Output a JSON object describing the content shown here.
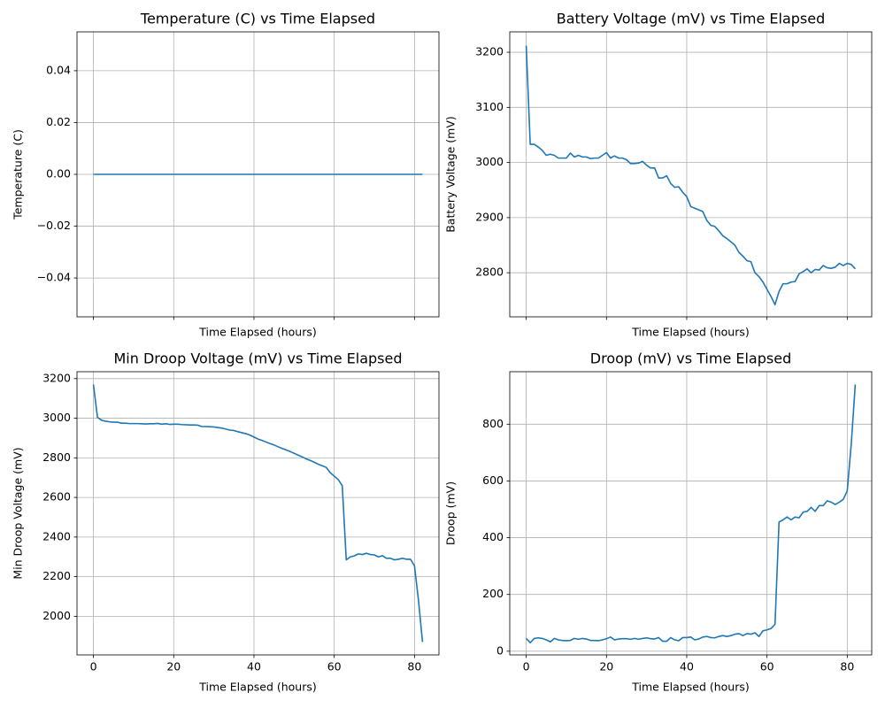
{
  "chart_data": [
    {
      "type": "line",
      "title": "Temperature (C) vs Time Elapsed",
      "xlabel": "Time Elapsed (hours)",
      "ylabel": "Temperature (C)",
      "color": "#1f77b4",
      "grid": true,
      "xtick_labels": false,
      "x": [
        0,
        1,
        2,
        3,
        4,
        5,
        6,
        7,
        8,
        9,
        10,
        11,
        12,
        13,
        14,
        15,
        16,
        17,
        18,
        19,
        20,
        21,
        22,
        23,
        24,
        25,
        26,
        27,
        28,
        29,
        30,
        31,
        32,
        33,
        34,
        35,
        36,
        37,
        38,
        39,
        40,
        41,
        42,
        43,
        44,
        45,
        46,
        47,
        48,
        49,
        50,
        51,
        52,
        53,
        54,
        55,
        56,
        57,
        58,
        59,
        60,
        61,
        62,
        63,
        64,
        65,
        66,
        67,
        68,
        69,
        70,
        71,
        72,
        73,
        74,
        75,
        76,
        77,
        78,
        79,
        80,
        81,
        82
      ],
      "values": [
        0,
        0,
        0,
        0,
        0,
        0,
        0,
        0,
        0,
        0,
        0,
        0,
        0,
        0,
        0,
        0,
        0,
        0,
        0,
        0,
        0,
        0,
        0,
        0,
        0,
        0,
        0,
        0,
        0,
        0,
        0,
        0,
        0,
        0,
        0,
        0,
        0,
        0,
        0,
        0,
        0,
        0,
        0,
        0,
        0,
        0,
        0,
        0,
        0,
        0,
        0,
        0,
        0,
        0,
        0,
        0,
        0,
        0,
        0,
        0,
        0,
        0,
        0,
        0,
        0,
        0,
        0,
        0,
        0,
        0,
        0,
        0,
        0,
        0,
        0,
        0,
        0,
        0,
        0,
        0,
        0,
        0,
        0
      ],
      "xlim": [
        -4.1,
        86.1
      ],
      "xticks": [
        0,
        20,
        40,
        60,
        80
      ],
      "ylim": [
        -0.055,
        0.055
      ],
      "yticks": [
        {
          "value": -0.04,
          "label": "−0.04"
        },
        {
          "value": -0.02,
          "label": "−0.02"
        },
        {
          "value": 0,
          "label": "0.00"
        },
        0.02,
        0.04
      ]
    },
    {
      "type": "line",
      "title": "Battery Voltage (mV) vs Time Elapsed",
      "xlabel": "Time Elapsed (hours)",
      "ylabel": "Battery Voltage (mV)",
      "color": "#1f77b4",
      "grid": true,
      "xtick_labels": false,
      "x": [
        0,
        1,
        2,
        3,
        4,
        5,
        6,
        7,
        8,
        9,
        10,
        11,
        12,
        13,
        14,
        15,
        16,
        17,
        18,
        19,
        20,
        21,
        22,
        23,
        24,
        25,
        26,
        27,
        28,
        29,
        30,
        31,
        32,
        33,
        34,
        35,
        36,
        37,
        38,
        39,
        40,
        41,
        42,
        43,
        44,
        45,
        46,
        47,
        48,
        49,
        50,
        51,
        52,
        53,
        54,
        55,
        56,
        57,
        58,
        59,
        60,
        61,
        62,
        63,
        64,
        65,
        66,
        67,
        68,
        69,
        70,
        71,
        72,
        73,
        74,
        75,
        76,
        77,
        78,
        79,
        80,
        81,
        82
      ],
      "values": [
        3212,
        3033,
        3033,
        3028,
        3022,
        3013,
        3015,
        3013,
        3008,
        3008,
        3008,
        3017,
        3010,
        3013,
        3010,
        3010,
        3007,
        3008,
        3008,
        3013,
        3018,
        3008,
        3012,
        3008,
        3008,
        3005,
        2998,
        2998,
        2999,
        3002,
        2995,
        2990,
        2990,
        2972,
        2972,
        2976,
        2962,
        2955,
        2956,
        2946,
        2938,
        2920,
        2917,
        2914,
        2911,
        2895,
        2886,
        2884,
        2876,
        2867,
        2862,
        2856,
        2850,
        2837,
        2830,
        2822,
        2820,
        2800,
        2793,
        2783,
        2770,
        2757,
        2742,
        2766,
        2780,
        2780,
        2783,
        2784,
        2798,
        2802,
        2807,
        2800,
        2806,
        2805,
        2813,
        2809,
        2808,
        2810,
        2817,
        2813,
        2817,
        2815,
        2807
      ],
      "xlim": [
        -4.1,
        86.1
      ],
      "xticks": [
        0,
        20,
        40,
        60,
        80
      ],
      "ylim": [
        2720,
        3237
      ],
      "yticks": [
        2800,
        2900,
        3000,
        3100,
        3200
      ]
    },
    {
      "type": "line",
      "title": "Min Droop Voltage (mV) vs Time Elapsed",
      "xlabel": "Time Elapsed (hours)",
      "ylabel": "Min Droop Voltage (mV)",
      "color": "#1f77b4",
      "grid": true,
      "xtick_labels": true,
      "x": [
        0,
        1,
        2,
        3,
        4,
        5,
        6,
        7,
        8,
        9,
        10,
        11,
        12,
        13,
        14,
        15,
        16,
        17,
        18,
        19,
        20,
        21,
        22,
        23,
        24,
        25,
        26,
        27,
        28,
        29,
        30,
        31,
        32,
        33,
        34,
        35,
        36,
        37,
        38,
        39,
        40,
        41,
        42,
        43,
        44,
        45,
        46,
        47,
        48,
        49,
        50,
        51,
        52,
        53,
        54,
        55,
        56,
        57,
        58,
        59,
        60,
        61,
        62,
        63,
        64,
        65,
        66,
        67,
        68,
        69,
        70,
        71,
        72,
        73,
        74,
        75,
        76,
        77,
        78,
        79,
        80,
        81,
        82
      ],
      "values": [
        3170,
        3005,
        2990,
        2985,
        2982,
        2980,
        2980,
        2975,
        2975,
        2973,
        2973,
        2973,
        2972,
        2971,
        2972,
        2972,
        2974,
        2970,
        2972,
        2969,
        2970,
        2970,
        2968,
        2967,
        2966,
        2966,
        2965,
        2958,
        2958,
        2957,
        2956,
        2953,
        2950,
        2945,
        2940,
        2938,
        2932,
        2927,
        2922,
        2915,
        2905,
        2895,
        2888,
        2880,
        2872,
        2865,
        2856,
        2848,
        2840,
        2832,
        2823,
        2814,
        2805,
        2795,
        2787,
        2778,
        2768,
        2760,
        2752,
        2725,
        2708,
        2690,
        2660,
        2285,
        2300,
        2305,
        2315,
        2312,
        2318,
        2312,
        2310,
        2300,
        2306,
        2293,
        2293,
        2285,
        2288,
        2293,
        2288,
        2288,
        2255,
        2080,
        1870
      ],
      "xlim": [
        -4.1,
        86.1
      ],
      "xticks": [
        0,
        20,
        40,
        60,
        80
      ],
      "ylim": [
        1805,
        3235
      ],
      "yticks": [
        2000,
        2200,
        2400,
        2600,
        2800,
        3000,
        3200
      ]
    },
    {
      "type": "line",
      "title": "Droop (mV) vs Time Elapsed",
      "xlabel": "Time Elapsed (hours)",
      "ylabel": "Droop (mV)",
      "color": "#1f77b4",
      "grid": true,
      "xtick_labels": true,
      "x": [
        0,
        1,
        2,
        3,
        4,
        5,
        6,
        7,
        8,
        9,
        10,
        11,
        12,
        13,
        14,
        15,
        16,
        17,
        18,
        19,
        20,
        21,
        22,
        23,
        24,
        25,
        26,
        27,
        28,
        29,
        30,
        31,
        32,
        33,
        34,
        35,
        36,
        37,
        38,
        39,
        40,
        41,
        42,
        43,
        44,
        45,
        46,
        47,
        48,
        49,
        50,
        51,
        52,
        53,
        54,
        55,
        56,
        57,
        58,
        59,
        60,
        61,
        62,
        63,
        64,
        65,
        66,
        67,
        68,
        69,
        70,
        71,
        72,
        73,
        74,
        75,
        76,
        77,
        78,
        79,
        80,
        81,
        82
      ],
      "values": [
        45,
        30,
        45,
        47,
        45,
        40,
        33,
        45,
        40,
        38,
        37,
        38,
        45,
        42,
        45,
        43,
        38,
        38,
        37,
        40,
        44,
        50,
        40,
        43,
        44,
        44,
        42,
        45,
        42,
        45,
        47,
        44,
        43,
        48,
        35,
        35,
        48,
        40,
        37,
        48,
        48,
        50,
        40,
        43,
        50,
        52,
        48,
        47,
        52,
        55,
        52,
        55,
        60,
        62,
        55,
        62,
        60,
        65,
        52,
        72,
        75,
        80,
        95,
        455,
        463,
        473,
        463,
        473,
        470,
        490,
        493,
        507,
        493,
        513,
        513,
        530,
        525,
        517,
        525,
        535,
        565,
        730,
        940
      ],
      "xlim": [
        -4.1,
        86.1
      ],
      "xticks": [
        0,
        20,
        40,
        60,
        80
      ],
      "ylim": [
        -13,
        985
      ],
      "yticks": [
        0,
        200,
        400,
        600,
        800
      ]
    }
  ]
}
